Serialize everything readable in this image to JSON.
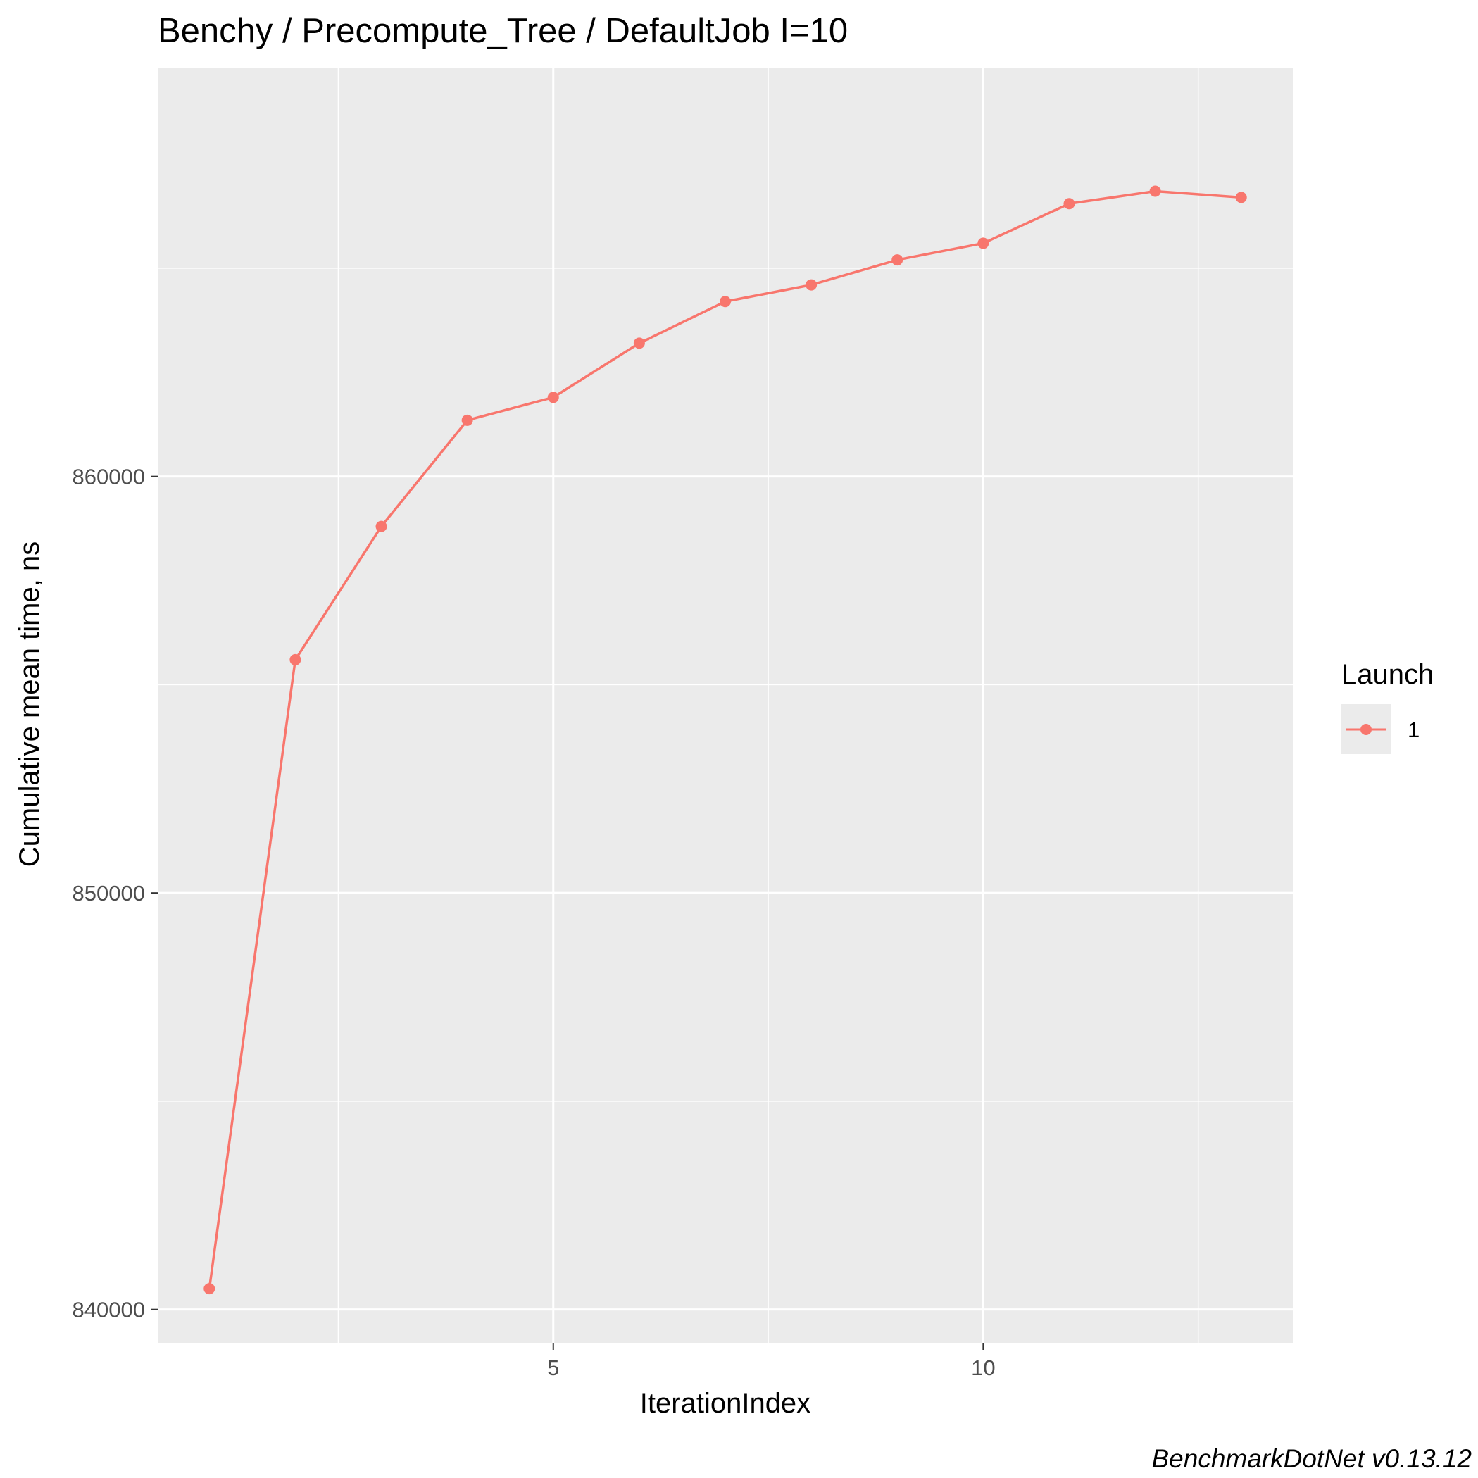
{
  "chart_data": {
    "type": "line",
    "title": "Benchy / Precompute_Tree / DefaultJob I=10",
    "xlabel": "IterationIndex",
    "ylabel": "Cumulative mean time, ns",
    "caption": "BenchmarkDotNet v0.13.12",
    "xlim": [
      0.4,
      13.6
    ],
    "ylim": [
      839200,
      869800
    ],
    "x_ticks": [
      5,
      10
    ],
    "x_tick_labels": [
      "5",
      "10"
    ],
    "x_minor_ticks": [
      2.5,
      7.5,
      12.5
    ],
    "y_ticks": [
      840000,
      850000,
      860000
    ],
    "y_tick_labels": [
      "840000",
      "850000",
      "860000"
    ],
    "y_minor_ticks": [
      845000,
      855000,
      865000
    ],
    "grid": true,
    "legend": {
      "title": "Launch",
      "position": "right",
      "entries": [
        "1"
      ]
    },
    "series": [
      {
        "name": "1",
        "color": "#F8766D",
        "x": [
          1,
          2,
          3,
          4,
          5,
          6,
          7,
          8,
          9,
          10,
          11,
          12,
          13
        ],
        "y": [
          840500,
          855600,
          858800,
          861350,
          861900,
          863200,
          864200,
          864600,
          865200,
          865600,
          866550,
          866850,
          866700
        ]
      }
    ]
  },
  "colors": {
    "panel_background": "#EBEBEB",
    "grid_line": "#FFFFFF",
    "tick_mark": "#333333"
  }
}
